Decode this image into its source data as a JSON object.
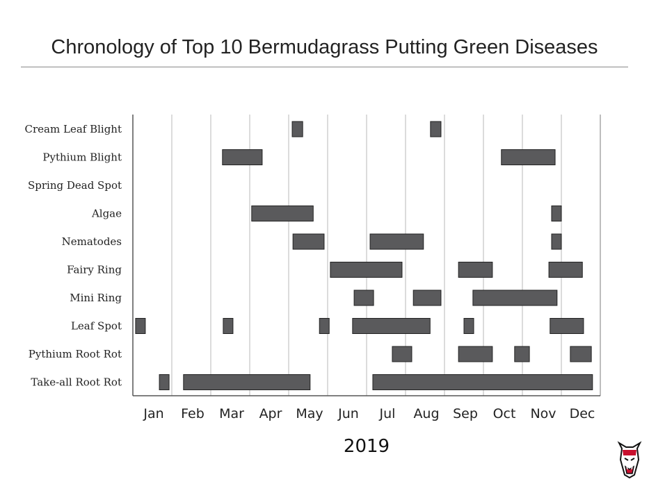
{
  "chart_data": {
    "type": "bar",
    "subtype": "gantt",
    "title": "Chronology of Top 10 Bermudagrass Putting Green Diseases",
    "xlabel": "2019",
    "ylabel": "",
    "x_units": "months from Jan 1 2019",
    "xlim": [
      0,
      12
    ],
    "xticks": [
      "Jan",
      "Feb",
      "Mar",
      "Apr",
      "May",
      "Jun",
      "Jul",
      "Aug",
      "Sep",
      "Oct",
      "Nov",
      "Dec"
    ],
    "grid": "vertical at month boundaries",
    "bar_color": "#5a5a5c",
    "categories": [
      "Cream Leaf Blight",
      "Pythium Blight",
      "Spring Dead Spot",
      "Algae",
      "Nematodes",
      "Fairy Ring",
      "Mini Ring",
      "Leaf Spot",
      "Pythium Root Rot",
      "Take-all Root Rot"
    ],
    "series": [
      {
        "category": "Cream Leaf Blight",
        "ranges": [
          [
            4.09,
            4.36
          ],
          [
            7.64,
            7.91
          ]
        ]
      },
      {
        "category": "Pythium Blight",
        "ranges": [
          [
            2.3,
            3.32
          ],
          [
            9.46,
            10.84
          ]
        ]
      },
      {
        "category": "Spring Dead Spot",
        "ranges": []
      },
      {
        "category": "Algae",
        "ranges": [
          [
            3.05,
            4.63
          ],
          [
            10.75,
            11.0
          ]
        ]
      },
      {
        "category": "Nematodes",
        "ranges": [
          [
            4.11,
            4.91
          ],
          [
            6.09,
            7.46
          ],
          [
            10.75,
            11.0
          ]
        ]
      },
      {
        "category": "Fairy Ring",
        "ranges": [
          [
            5.07,
            6.91
          ],
          [
            8.36,
            9.23
          ],
          [
            10.68,
            11.54
          ]
        ]
      },
      {
        "category": "Mini Ring",
        "ranges": [
          [
            5.68,
            6.18
          ],
          [
            7.2,
            7.91
          ],
          [
            8.73,
            10.89
          ]
        ]
      },
      {
        "category": "Leaf Spot",
        "ranges": [
          [
            0.07,
            0.32
          ],
          [
            2.32,
            2.57
          ],
          [
            4.79,
            5.04
          ],
          [
            5.64,
            7.63
          ],
          [
            8.5,
            8.75
          ],
          [
            10.71,
            11.57
          ]
        ]
      },
      {
        "category": "Pythium Root Rot",
        "ranges": [
          [
            6.66,
            7.16
          ],
          [
            8.36,
            9.23
          ],
          [
            9.8,
            10.18
          ],
          [
            11.23,
            11.77
          ]
        ]
      },
      {
        "category": "Take-all Root Rot",
        "ranges": [
          [
            0.68,
            0.93
          ],
          [
            1.3,
            4.55
          ],
          [
            6.16,
            11.8
          ]
        ]
      }
    ]
  },
  "logo": {
    "name": "wolf-mascot-logo"
  }
}
